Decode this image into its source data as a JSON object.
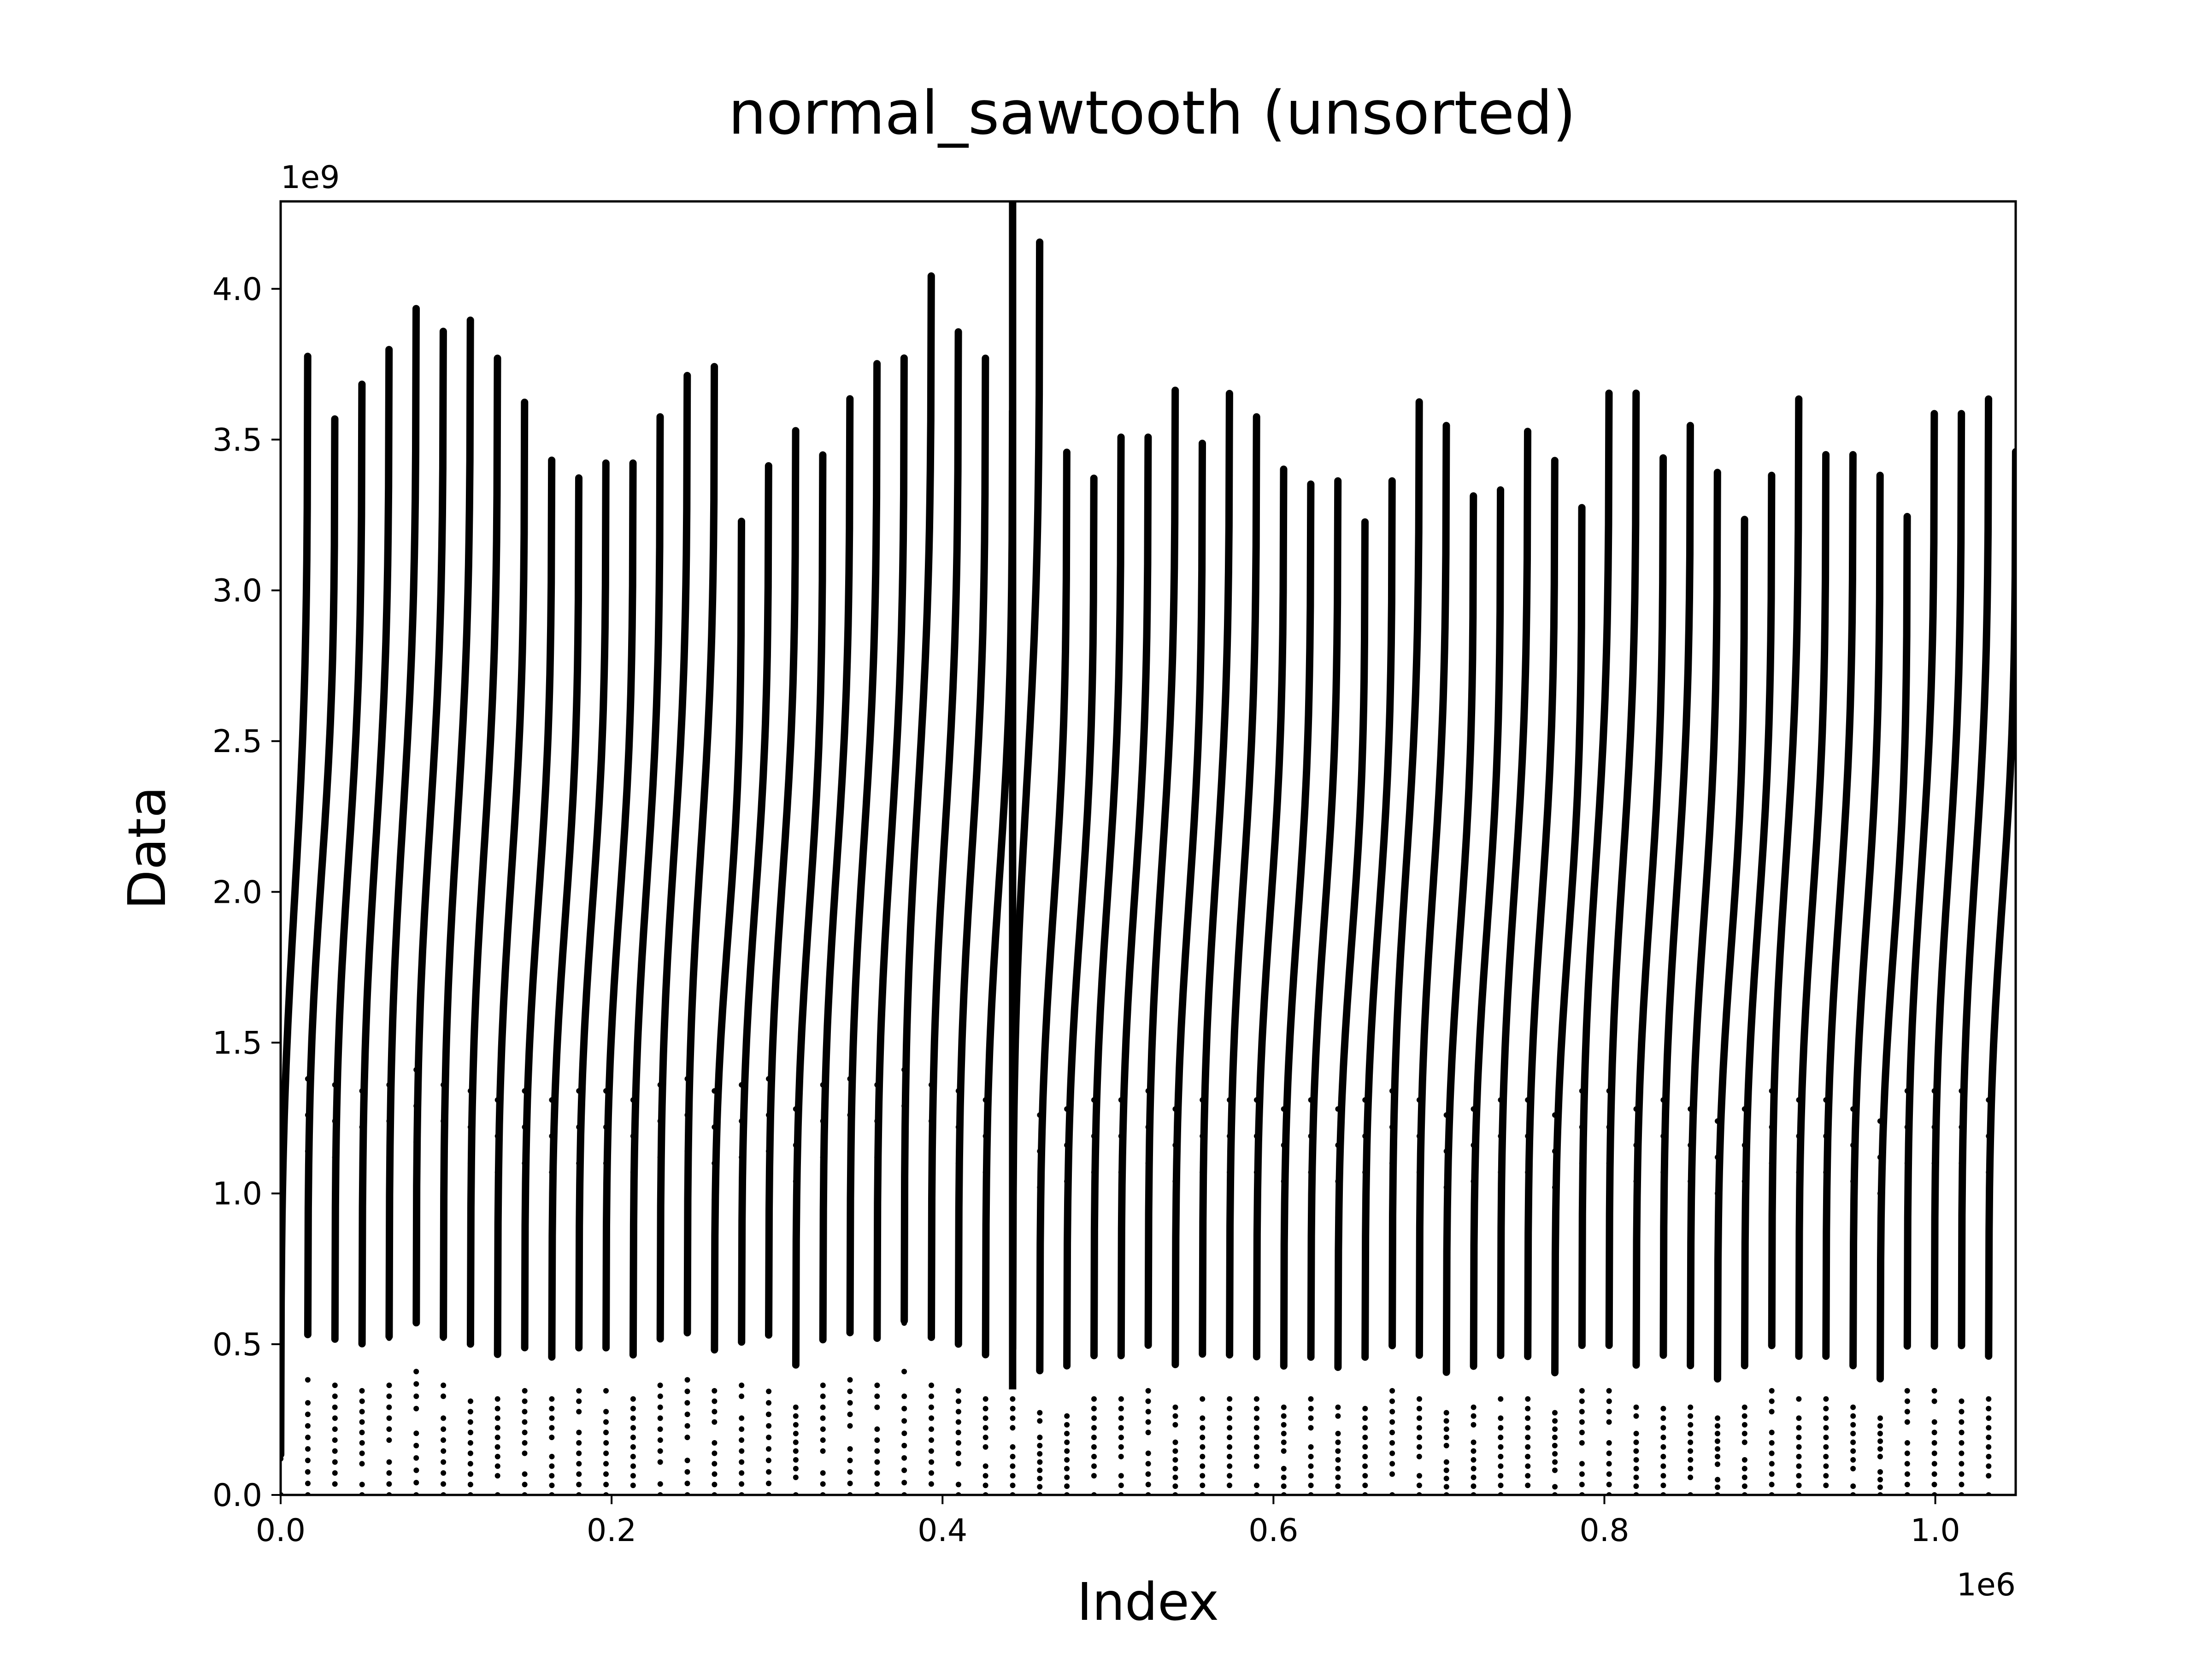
{
  "chart_data": {
    "type": "scatter",
    "title": "normal_sawtooth (unsorted)",
    "xlabel": "Index",
    "ylabel": "Data",
    "x_offset_label": "1e6",
    "y_offset_label": "1e9",
    "xlim": [
      0,
      1.048576
    ],
    "ylim": [
      0,
      4.29
    ],
    "x_unit_scale": "1e6",
    "y_unit_scale": "1e9",
    "xticks": [
      0.0,
      0.2,
      0.4,
      0.6,
      0.8,
      1.0
    ],
    "xtick_labels": [
      "0.0",
      "0.2",
      "0.4",
      "0.6",
      "0.8",
      "1.0"
    ],
    "yticks": [
      0.0,
      0.5,
      1.0,
      1.5,
      2.0,
      2.5,
      3.0,
      3.5,
      4.0
    ],
    "ytick_labels": [
      "0.0",
      "0.5",
      "1.0",
      "1.5",
      "2.0",
      "2.5",
      "3.0",
      "3.5",
      "4.0"
    ],
    "grid": false,
    "legend": "none",
    "marker_color": "#000000",
    "segment_length": 16384,
    "series": [
      {
        "description_note": "",
        "segment_peaks": [
          3.91,
          3.68,
          3.8,
          3.92,
          4.06,
          3.98,
          4.02,
          3.89,
          3.74,
          3.54,
          3.48,
          3.53,
          3.53,
          3.69,
          3.83,
          3.86,
          3.33,
          3.52,
          3.64,
          3.56,
          3.75,
          3.87,
          3.89,
          4.17,
          3.98,
          3.89,
          3.71,
          4.29,
          3.57,
          3.48,
          3.62,
          3.62,
          3.78,
          3.6,
          3.77,
          3.69,
          3.51,
          3.46,
          3.47,
          3.33,
          3.47,
          3.74,
          3.66,
          3.42,
          3.44,
          3.64,
          3.54,
          3.38,
          3.77,
          3.77,
          3.55,
          3.66,
          3.5,
          3.34,
          3.49,
          3.75,
          3.56,
          3.56,
          3.49,
          3.35,
          3.7,
          3.7,
          3.75,
          3.57
        ],
        "segment_bottoms": [
          0.0,
          0.42,
          0.4,
          0.38,
          0.4,
          0.45,
          0.4,
          0.38,
          0.35,
          0.38,
          0.35,
          0.38,
          0.38,
          0.35,
          0.4,
          0.42,
          0.38,
          0.4,
          0.42,
          0.32,
          0.4,
          0.42,
          0.4,
          0.45,
          0.4,
          0.38,
          0.35,
          0.35,
          0.3,
          0.32,
          0.35,
          0.35,
          0.38,
          0.32,
          0.35,
          0.35,
          0.35,
          0.32,
          0.35,
          0.32,
          0.35,
          0.38,
          0.35,
          0.3,
          0.32,
          0.35,
          0.35,
          0.3,
          0.38,
          0.38,
          0.32,
          0.35,
          0.32,
          0.28,
          0.32,
          0.38,
          0.35,
          0.35,
          0.32,
          0.28,
          0.38,
          0.38,
          0.38,
          0.35
        ],
        "last_segment_end": 2.6
      }
    ]
  }
}
